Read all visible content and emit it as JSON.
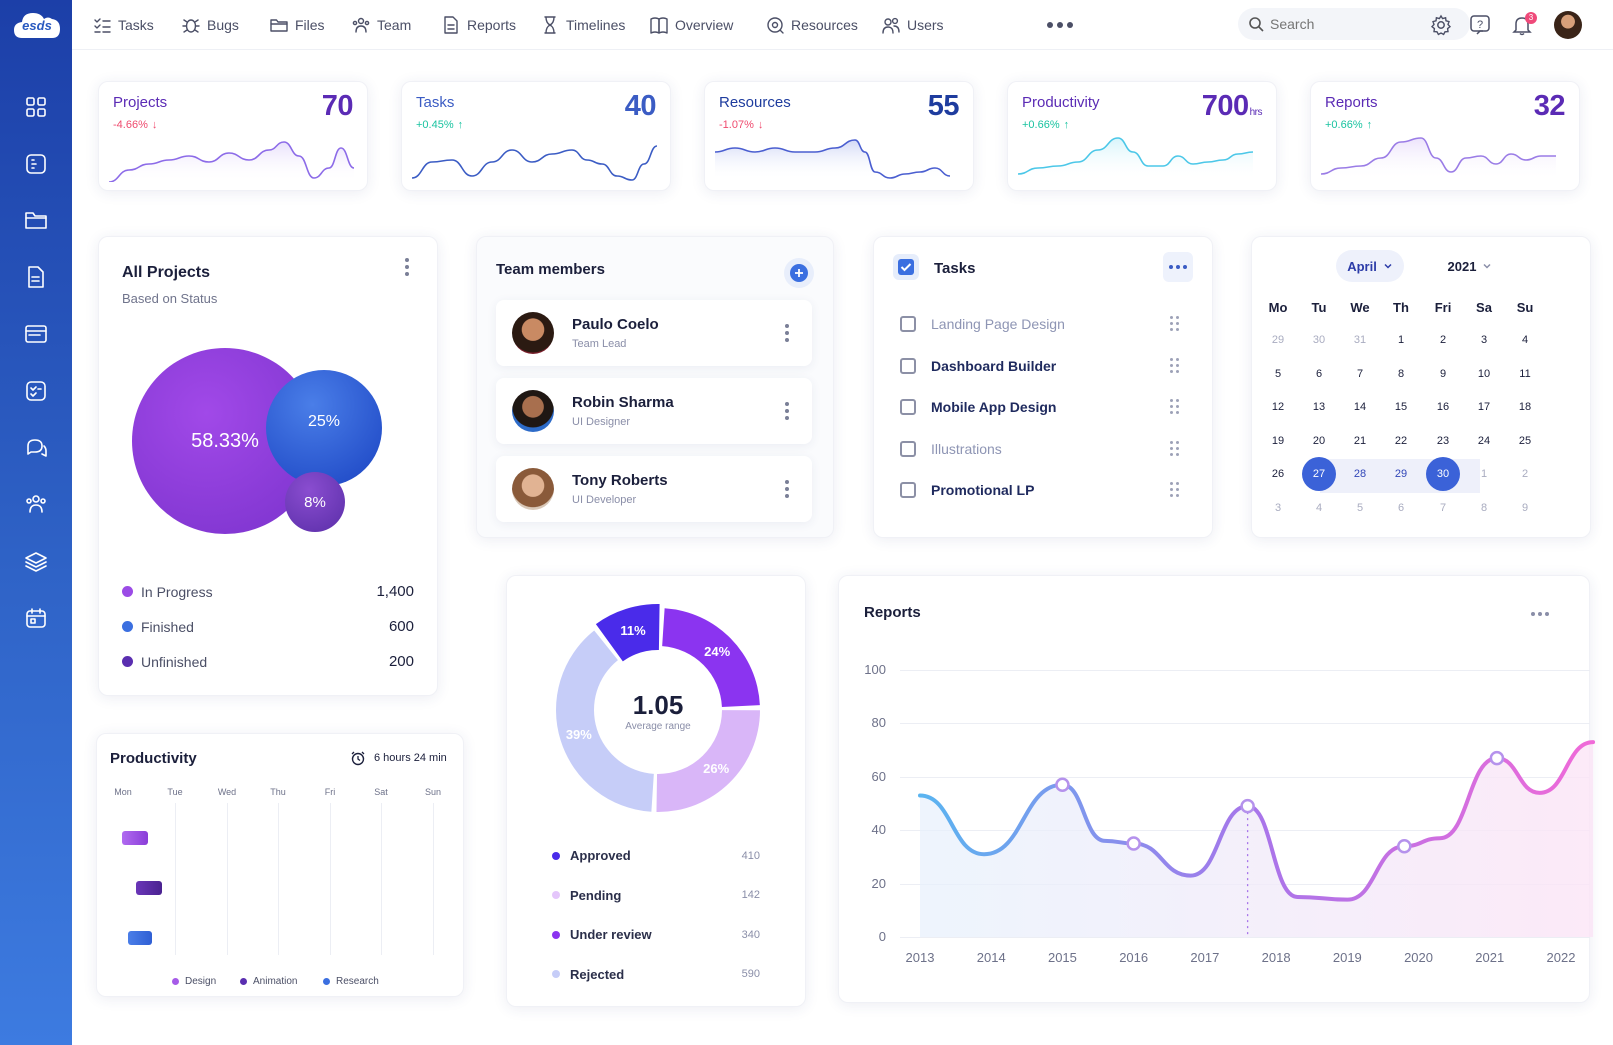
{
  "brand": {
    "logo_text": "esds"
  },
  "nav": {
    "items": [
      {
        "label": "Tasks",
        "icon": "task-list-icon"
      },
      {
        "label": "Bugs",
        "icon": "bug-icon"
      },
      {
        "label": "Files",
        "icon": "folder-icon"
      },
      {
        "label": "Team",
        "icon": "team-icon"
      },
      {
        "label": "Reports",
        "icon": "report-file-icon"
      },
      {
        "label": "Timelines",
        "icon": "hourglass-icon"
      },
      {
        "label": "Overview",
        "icon": "book-icon"
      },
      {
        "label": "Resources",
        "icon": "resources-icon"
      },
      {
        "label": "Users",
        "icon": "users-icon"
      }
    ]
  },
  "search": {
    "placeholder": "Search"
  },
  "notifications": {
    "count": "3"
  },
  "sidebar": {
    "icons": [
      "dashboard-grid-icon",
      "board-icon",
      "folder-icon",
      "document-icon",
      "browser-window-icon",
      "checklist-icon",
      "chat-icon",
      "team-icon",
      "layers-icon",
      "calendar-icon"
    ]
  },
  "kpis": [
    {
      "title": "Projects",
      "value": "70",
      "unit": "",
      "change": "-4.66%",
      "trend": "down",
      "color": "#5b2bb5",
      "change_color": "#ef4a6e"
    },
    {
      "title": "Tasks",
      "value": "40",
      "unit": "",
      "change": "+0.45%",
      "trend": "up",
      "color": "#3b5cc4",
      "change_color": "#19c3a0"
    },
    {
      "title": "Resources",
      "value": "55",
      "unit": "",
      "change": "-1.07%",
      "trend": "down",
      "color": "#1e3c9e",
      "change_color": "#ef4a6e"
    },
    {
      "title": "Productivity",
      "value": "700",
      "unit": "hrs",
      "change": "+0.66%",
      "trend": "up",
      "color": "#5b2bb5",
      "change_color": "#19c3a0"
    },
    {
      "title": "Reports",
      "value": "32",
      "unit": "",
      "change": "+0.66%",
      "trend": "up",
      "color": "#5b2bb5",
      "change_color": "#19c3a0"
    }
  ],
  "all_projects": {
    "title": "All Projects",
    "subtitle": "Based on Status",
    "bubbles": [
      {
        "label": "58.33%",
        "value": 58.33,
        "color": "#8a3ed8"
      },
      {
        "label": "25%",
        "value": 25,
        "color": "#2f5fd4"
      },
      {
        "label": "8%",
        "value": 8,
        "color": "#6a36b8"
      }
    ],
    "legend": [
      {
        "label": "In Progress",
        "value": "1,400",
        "color": "#9b4be6"
      },
      {
        "label": "Finished",
        "value": "600",
        "color": "#3b6fe0"
      },
      {
        "label": "Unfinished",
        "value": "200",
        "color": "#5a2eb0"
      }
    ]
  },
  "team": {
    "title": "Team members",
    "members": [
      {
        "name": "Paulo Coelo",
        "role": "Team Lead"
      },
      {
        "name": "Robin Sharma",
        "role": "UI Designer"
      },
      {
        "name": "Tony Roberts",
        "role": "UI Developer"
      }
    ]
  },
  "tasks_card": {
    "title": "Tasks",
    "items": [
      {
        "label": "Landing Page Design",
        "muted": true
      },
      {
        "label": "Dashboard Builder",
        "muted": false
      },
      {
        "label": "Mobile App Design",
        "muted": false
      },
      {
        "label": "Illustrations",
        "muted": true
      },
      {
        "label": "Promotional LP",
        "muted": false
      }
    ]
  },
  "calendar": {
    "month": "April",
    "year": "2021",
    "weekdays": [
      "Mo",
      "Tu",
      "We",
      "Th",
      "Fri",
      "Sa",
      "Su"
    ],
    "weeks": [
      [
        "29",
        "30",
        "31",
        "1",
        "2",
        "3",
        "4"
      ],
      [
        "5",
        "6",
        "7",
        "8",
        "9",
        "10",
        "11"
      ],
      [
        "12",
        "13",
        "14",
        "15",
        "16",
        "17",
        "18"
      ],
      [
        "19",
        "20",
        "21",
        "22",
        "23",
        "24",
        "25"
      ],
      [
        "26",
        "27",
        "28",
        "29",
        "30",
        "1",
        "2"
      ],
      [
        "3",
        "4",
        "5",
        "6",
        "7",
        "8",
        "9"
      ]
    ],
    "range_start": "27",
    "range_end": "30"
  },
  "donut": {
    "center_value": "1.05",
    "center_label": "Average range",
    "segments": [
      {
        "label": "11%",
        "value": 11,
        "color": "#4a2bea"
      },
      {
        "label": "24%",
        "value": 24,
        "color": "#8b34f0"
      },
      {
        "label": "26%",
        "value": 26,
        "color": "#d9b6f8"
      },
      {
        "label": "39%",
        "value": 39,
        "color": "#c6cdf8"
      }
    ],
    "legend": [
      {
        "label": "Approved",
        "value": "410",
        "color": "#4a2bea"
      },
      {
        "label": "Pending",
        "value": "142",
        "color": "#e4c6fb"
      },
      {
        "label": "Under review",
        "value": "340",
        "color": "#8b34f0"
      },
      {
        "label": "Rejected",
        "value": "590",
        "color": "#c6cdf8"
      }
    ]
  },
  "productivity": {
    "title": "Productivity",
    "time": "6 hours 24 min",
    "days": [
      "Mon",
      "Tue",
      "Wed",
      "Thu",
      "Fri",
      "Sat",
      "Sun"
    ],
    "legend": [
      {
        "label": "Design",
        "color": "#a65be8"
      },
      {
        "label": "Animation",
        "color": "#5a2eb0"
      },
      {
        "label": "Research",
        "color": "#3b6fe0"
      }
    ]
  },
  "reports": {
    "title": "Reports"
  },
  "chart_data": {
    "type": "line",
    "title": "Reports",
    "x": [
      "2013",
      "2014",
      "2015",
      "2016",
      "2017",
      "2018",
      "2019",
      "2020",
      "2021",
      "2022"
    ],
    "yticks": [
      "100",
      "80",
      "60",
      "40",
      "20",
      "0"
    ],
    "ylim": [
      0,
      100
    ],
    "points": [
      {
        "x": 2013.0,
        "y": 53
      },
      {
        "x": 2013.9,
        "y": 31
      },
      {
        "x": 2015.0,
        "y": 57
      },
      {
        "x": 2015.6,
        "y": 36
      },
      {
        "x": 2016.0,
        "y": 35
      },
      {
        "x": 2016.8,
        "y": 23
      },
      {
        "x": 2017.6,
        "y": 49
      },
      {
        "x": 2018.3,
        "y": 15
      },
      {
        "x": 2019.0,
        "y": 14
      },
      {
        "x": 2019.8,
        "y": 34
      },
      {
        "x": 2020.3,
        "y": 37
      },
      {
        "x": 2021.1,
        "y": 67
      },
      {
        "x": 2021.7,
        "y": 54
      },
      {
        "x": 2022.45,
        "y": 73
      }
    ],
    "markers": [
      2015.0,
      2016.0,
      2017.6,
      2019.8,
      2021.1
    ],
    "grid": true,
    "gradient": [
      "#5ab4f0",
      "#a875ea",
      "#f06ad8"
    ]
  }
}
